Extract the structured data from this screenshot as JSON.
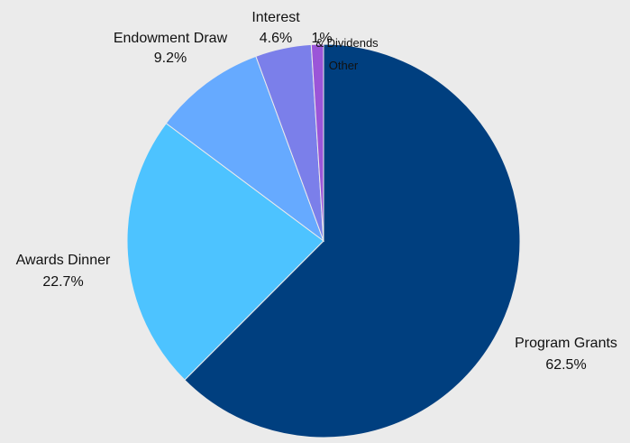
{
  "chart_data": {
    "type": "pie",
    "slices": [
      {
        "label": "Program Grants",
        "pct_label": "62.5%",
        "value": 62.5,
        "color": "#003f7f"
      },
      {
        "label": "Awards Dinner",
        "pct_label": "22.7%",
        "value": 22.7,
        "color": "#4dc3ff"
      },
      {
        "label": "Endowment Draw",
        "pct_label": "9.2%",
        "value": 9.2,
        "color": "#66aaff"
      },
      {
        "label": "Interest",
        "label2": "& Dividends",
        "pct_label": "4.6%",
        "value": 4.6,
        "color": "#7b7fea"
      },
      {
        "label": "Other",
        "pct_label": "1%",
        "value": 1.0,
        "color": "#9b55d8"
      }
    ],
    "start_angle_deg": 0,
    "direction": "clockwise",
    "legend": "none"
  },
  "colors": {
    "background": "#ebebeb",
    "slice_border": "#ebebeb"
  }
}
